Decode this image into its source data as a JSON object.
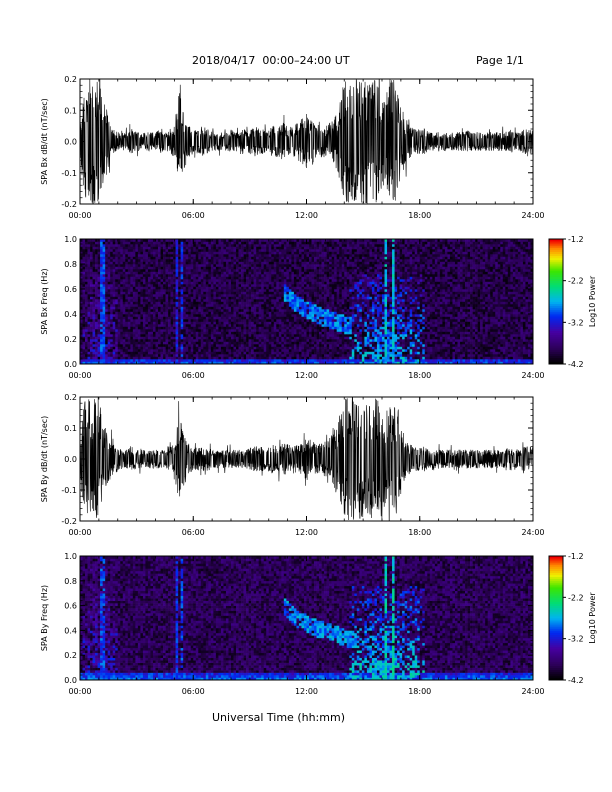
{
  "header": {
    "title": "2018/04/17  00:00–24:00 UT",
    "page": "Page 1/1"
  },
  "footer": {
    "xlabel": "Universal Time (hh:mm)"
  },
  "chart_data": [
    {
      "type": "line",
      "ylabel": "SPA Bx dB/dt (nT/sec)",
      "xlim": [
        0,
        24
      ],
      "ylim": [
        -0.2,
        0.2
      ],
      "xticks": [
        "00:00",
        "06:00",
        "12:00",
        "18:00",
        "24:00"
      ],
      "yticks": [
        "-0.2",
        "-0.1",
        "0.0",
        "0.1",
        "0.2"
      ],
      "series": [
        {
          "x": [
            0,
            0.25,
            0.5,
            0.75,
            1,
            1.25,
            1.5,
            1.75,
            2,
            2.25,
            2.5,
            2.75,
            3,
            3.25,
            3.5,
            3.75,
            4,
            4.25,
            4.5,
            4.75,
            5,
            5.25,
            5.5,
            5.75,
            6,
            6.25,
            6.5,
            6.75,
            7,
            7.25,
            7.5,
            7.75,
            8,
            8.25,
            8.5,
            8.75,
            9,
            9.25,
            9.5,
            9.75,
            10,
            10.25,
            10.5,
            10.75,
            11,
            11.25,
            11.5,
            11.75,
            12,
            12.25,
            12.5,
            12.75,
            13,
            13.25,
            13.5,
            13.75,
            14,
            14.25,
            14.5,
            14.75,
            15,
            15.25,
            15.5,
            15.75,
            16,
            16.25,
            16.5,
            16.75,
            17,
            17.25,
            17.5,
            17.75,
            18,
            18.25,
            18.5,
            18.75,
            19,
            19.25,
            19.5,
            19.75,
            20,
            20.25,
            20.5,
            20.75,
            21,
            21.25,
            21.5,
            21.75,
            22,
            22.25,
            22.5,
            22.75,
            23,
            23.25,
            23.5,
            23.75,
            24
          ],
          "ymax": [
            0.05,
            0.2,
            0.2,
            0.2,
            0.2,
            0.15,
            0.08,
            0.04,
            0.03,
            0.03,
            0.03,
            0.04,
            0.03,
            0.03,
            0.03,
            0.03,
            0.03,
            0.04,
            0.03,
            0.04,
            0.05,
            0.17,
            0.1,
            0.05,
            0.04,
            0.04,
            0.05,
            0.04,
            0.03,
            0.03,
            0.03,
            0.03,
            0.04,
            0.03,
            0.04,
            0.04,
            0.04,
            0.05,
            0.04,
            0.04,
            0.04,
            0.05,
            0.05,
            0.06,
            0.05,
            0.05,
            0.06,
            0.07,
            0.09,
            0.08,
            0.06,
            0.05,
            0.05,
            0.06,
            0.08,
            0.12,
            0.2,
            0.2,
            0.2,
            0.2,
            0.2,
            0.2,
            0.2,
            0.2,
            0.15,
            0.16,
            0.2,
            0.2,
            0.12,
            0.08,
            0.05,
            0.04,
            0.04,
            0.04,
            0.03,
            0.03,
            0.03,
            0.03,
            0.03,
            0.03,
            0.03,
            0.03,
            0.04,
            0.03,
            0.03,
            0.03,
            0.03,
            0.03,
            0.03,
            0.03,
            0.03,
            0.04,
            0.03,
            0.03,
            0.04,
            0.04,
            0.04
          ],
          "ymin": [
            -0.05,
            -0.2,
            -0.2,
            -0.2,
            -0.2,
            -0.15,
            -0.08,
            -0.04,
            -0.03,
            -0.03,
            -0.03,
            -0.04,
            -0.03,
            -0.03,
            -0.03,
            -0.03,
            -0.03,
            -0.04,
            -0.03,
            -0.04,
            -0.05,
            -0.12,
            -0.1,
            -0.05,
            -0.04,
            -0.04,
            -0.05,
            -0.04,
            -0.03,
            -0.03,
            -0.03,
            -0.03,
            -0.04,
            -0.03,
            -0.04,
            -0.04,
            -0.04,
            -0.05,
            -0.04,
            -0.04,
            -0.04,
            -0.05,
            -0.05,
            -0.06,
            -0.05,
            -0.05,
            -0.06,
            -0.07,
            -0.09,
            -0.08,
            -0.06,
            -0.05,
            -0.05,
            -0.06,
            -0.08,
            -0.12,
            -0.2,
            -0.2,
            -0.2,
            -0.2,
            -0.2,
            -0.2,
            -0.2,
            -0.2,
            -0.15,
            -0.16,
            -0.2,
            -0.2,
            -0.12,
            -0.08,
            -0.05,
            -0.04,
            -0.04,
            -0.04,
            -0.03,
            -0.03,
            -0.03,
            -0.03,
            -0.03,
            -0.03,
            -0.03,
            -0.03,
            -0.04,
            -0.03,
            -0.03,
            -0.03,
            -0.03,
            -0.03,
            -0.03,
            -0.03,
            -0.03,
            -0.04,
            -0.03,
            -0.03,
            -0.04,
            -0.04,
            -0.04
          ]
        }
      ]
    },
    {
      "type": "heatmap",
      "ylabel": "SPA Bx Freq (Hz)",
      "xlim": [
        0,
        24
      ],
      "ylim": [
        0.0,
        1.0
      ],
      "xticks": [
        "00:00",
        "06:00",
        "12:00",
        "18:00",
        "24:00"
      ],
      "yticks": [
        "0.0",
        "0.2",
        "0.4",
        "0.6",
        "0.8",
        "1.0"
      ],
      "colorbar": {
        "label": "Log10 Power",
        "range": [
          -4.2,
          -1.2
        ],
        "ticks": [
          "-1.2",
          "-2.2",
          "-3.2",
          "-4.2"
        ]
      },
      "background_level": -3.9,
      "features": [
        {
          "type": "low_band",
          "x": [
            0,
            24
          ],
          "f_top": 0.05,
          "level": -3.0
        },
        {
          "type": "burst",
          "x": [
            0.2,
            2.0
          ],
          "f": [
            0,
            1.0
          ],
          "level": -3.3
        },
        {
          "type": "vertical_line",
          "x": 1.2,
          "level": -3.0
        },
        {
          "type": "vertical_line",
          "x": 5.1,
          "level": -3.2
        },
        {
          "type": "vertical_line",
          "x": 5.4,
          "level": -3.1
        },
        {
          "type": "arc",
          "x": [
            10.8,
            14.4
          ],
          "f": [
            0.62,
            0.3
          ],
          "level": -2.9
        },
        {
          "type": "burst",
          "x": [
            14.3,
            18.2
          ],
          "f": [
            0,
            0.72
          ],
          "level": -2.7
        },
        {
          "type": "vertical_line",
          "x": 16.2,
          "level": -2.6
        },
        {
          "type": "vertical_line",
          "x": 16.6,
          "level": -2.6
        }
      ]
    },
    {
      "type": "line",
      "ylabel": "SPA By dB/dt (nT/sec)",
      "xlim": [
        0,
        24
      ],
      "ylim": [
        -0.2,
        0.2
      ],
      "xticks": [
        "00:00",
        "06:00",
        "12:00",
        "18:00",
        "24:00"
      ],
      "yticks": [
        "-0.2",
        "-0.1",
        "0.0",
        "0.1",
        "0.2"
      ],
      "series": [
        {
          "x": [
            0,
            0.25,
            0.5,
            0.75,
            1,
            1.25,
            1.5,
            1.75,
            2,
            2.25,
            2.5,
            2.75,
            3,
            3.25,
            3.5,
            3.75,
            4,
            4.25,
            4.5,
            4.75,
            5,
            5.25,
            5.5,
            5.75,
            6,
            6.25,
            6.5,
            6.75,
            7,
            7.25,
            7.5,
            7.75,
            8,
            8.25,
            8.5,
            8.75,
            9,
            9.25,
            9.5,
            9.75,
            10,
            10.25,
            10.5,
            10.75,
            11,
            11.25,
            11.5,
            11.75,
            12,
            12.25,
            12.5,
            12.75,
            13,
            13.25,
            13.5,
            13.75,
            14,
            14.25,
            14.5,
            14.75,
            15,
            15.25,
            15.5,
            15.75,
            16,
            16.25,
            16.5,
            16.75,
            17,
            17.25,
            17.5,
            17.75,
            18,
            18.25,
            18.5,
            18.75,
            19,
            19.25,
            19.5,
            19.75,
            20,
            20.25,
            20.5,
            20.75,
            21,
            21.25,
            21.5,
            21.75,
            22,
            22.25,
            22.5,
            22.75,
            23,
            23.25,
            23.5,
            23.75,
            24
          ],
          "ymax": [
            0.05,
            0.2,
            0.2,
            0.2,
            0.2,
            0.12,
            0.08,
            0.05,
            0.04,
            0.03,
            0.03,
            0.04,
            0.03,
            0.03,
            0.03,
            0.03,
            0.03,
            0.03,
            0.03,
            0.04,
            0.05,
            0.14,
            0.09,
            0.05,
            0.04,
            0.04,
            0.04,
            0.04,
            0.03,
            0.03,
            0.03,
            0.03,
            0.03,
            0.03,
            0.03,
            0.03,
            0.04,
            0.04,
            0.04,
            0.04,
            0.04,
            0.05,
            0.05,
            0.05,
            0.05,
            0.04,
            0.05,
            0.05,
            0.07,
            0.06,
            0.05,
            0.05,
            0.06,
            0.07,
            0.1,
            0.14,
            0.2,
            0.2,
            0.2,
            0.2,
            0.2,
            0.2,
            0.2,
            0.2,
            0.15,
            0.16,
            0.18,
            0.2,
            0.12,
            0.06,
            0.05,
            0.04,
            0.04,
            0.04,
            0.03,
            0.03,
            0.03,
            0.03,
            0.03,
            0.03,
            0.03,
            0.03,
            0.03,
            0.03,
            0.03,
            0.03,
            0.03,
            0.03,
            0.03,
            0.03,
            0.03,
            0.04,
            0.03,
            0.03,
            0.04,
            0.04,
            0.04
          ],
          "ymin": [
            -0.05,
            -0.2,
            -0.2,
            -0.2,
            -0.2,
            -0.12,
            -0.08,
            -0.05,
            -0.04,
            -0.03,
            -0.03,
            -0.04,
            -0.03,
            -0.03,
            -0.03,
            -0.03,
            -0.03,
            -0.03,
            -0.03,
            -0.04,
            -0.05,
            -0.16,
            -0.09,
            -0.05,
            -0.04,
            -0.04,
            -0.04,
            -0.04,
            -0.03,
            -0.03,
            -0.03,
            -0.03,
            -0.03,
            -0.03,
            -0.03,
            -0.03,
            -0.04,
            -0.04,
            -0.04,
            -0.04,
            -0.04,
            -0.05,
            -0.05,
            -0.05,
            -0.05,
            -0.04,
            -0.05,
            -0.05,
            -0.07,
            -0.06,
            -0.05,
            -0.05,
            -0.06,
            -0.07,
            -0.1,
            -0.14,
            -0.2,
            -0.2,
            -0.2,
            -0.2,
            -0.2,
            -0.2,
            -0.2,
            -0.2,
            -0.15,
            -0.16,
            -0.18,
            -0.2,
            -0.12,
            -0.06,
            -0.05,
            -0.04,
            -0.04,
            -0.04,
            -0.03,
            -0.03,
            -0.03,
            -0.03,
            -0.03,
            -0.03,
            -0.03,
            -0.03,
            -0.03,
            -0.03,
            -0.03,
            -0.03,
            -0.03,
            -0.03,
            -0.03,
            -0.03,
            -0.03,
            -0.04,
            -0.03,
            -0.03,
            -0.04,
            -0.04,
            -0.04
          ]
        }
      ]
    },
    {
      "type": "heatmap",
      "ylabel": "SPA By Freq (Hz)",
      "xlim": [
        0,
        24
      ],
      "ylim": [
        0.0,
        1.0
      ],
      "xticks": [
        "00:00",
        "06:00",
        "12:00",
        "18:00",
        "24:00"
      ],
      "yticks": [
        "0.0",
        "0.2",
        "0.4",
        "0.6",
        "0.8",
        "1.0"
      ],
      "colorbar": {
        "label": "Log10 Power",
        "range": [
          -4.2,
          -1.2
        ],
        "ticks": [
          "-1.2",
          "-2.2",
          "-3.2",
          "-4.2"
        ]
      },
      "background_level": -3.85,
      "features": [
        {
          "type": "low_band",
          "x": [
            0,
            24
          ],
          "f_top": 0.06,
          "level": -2.9
        },
        {
          "type": "burst",
          "x": [
            0.2,
            2.0
          ],
          "f": [
            0,
            1.0
          ],
          "level": -3.2
        },
        {
          "type": "vertical_line",
          "x": 1.2,
          "level": -3.0
        },
        {
          "type": "vertical_line",
          "x": 5.1,
          "level": -3.1
        },
        {
          "type": "vertical_line",
          "x": 5.4,
          "level": -3.0
        },
        {
          "type": "arc",
          "x": [
            10.8,
            14.6
          ],
          "f": [
            0.64,
            0.32
          ],
          "level": -2.8
        },
        {
          "type": "burst",
          "x": [
            14.3,
            18.2
          ],
          "f": [
            0,
            0.75
          ],
          "level": -2.6
        },
        {
          "type": "vertical_line",
          "x": 16.2,
          "level": -2.5
        },
        {
          "type": "vertical_line",
          "x": 16.6,
          "level": -2.5
        }
      ]
    }
  ]
}
